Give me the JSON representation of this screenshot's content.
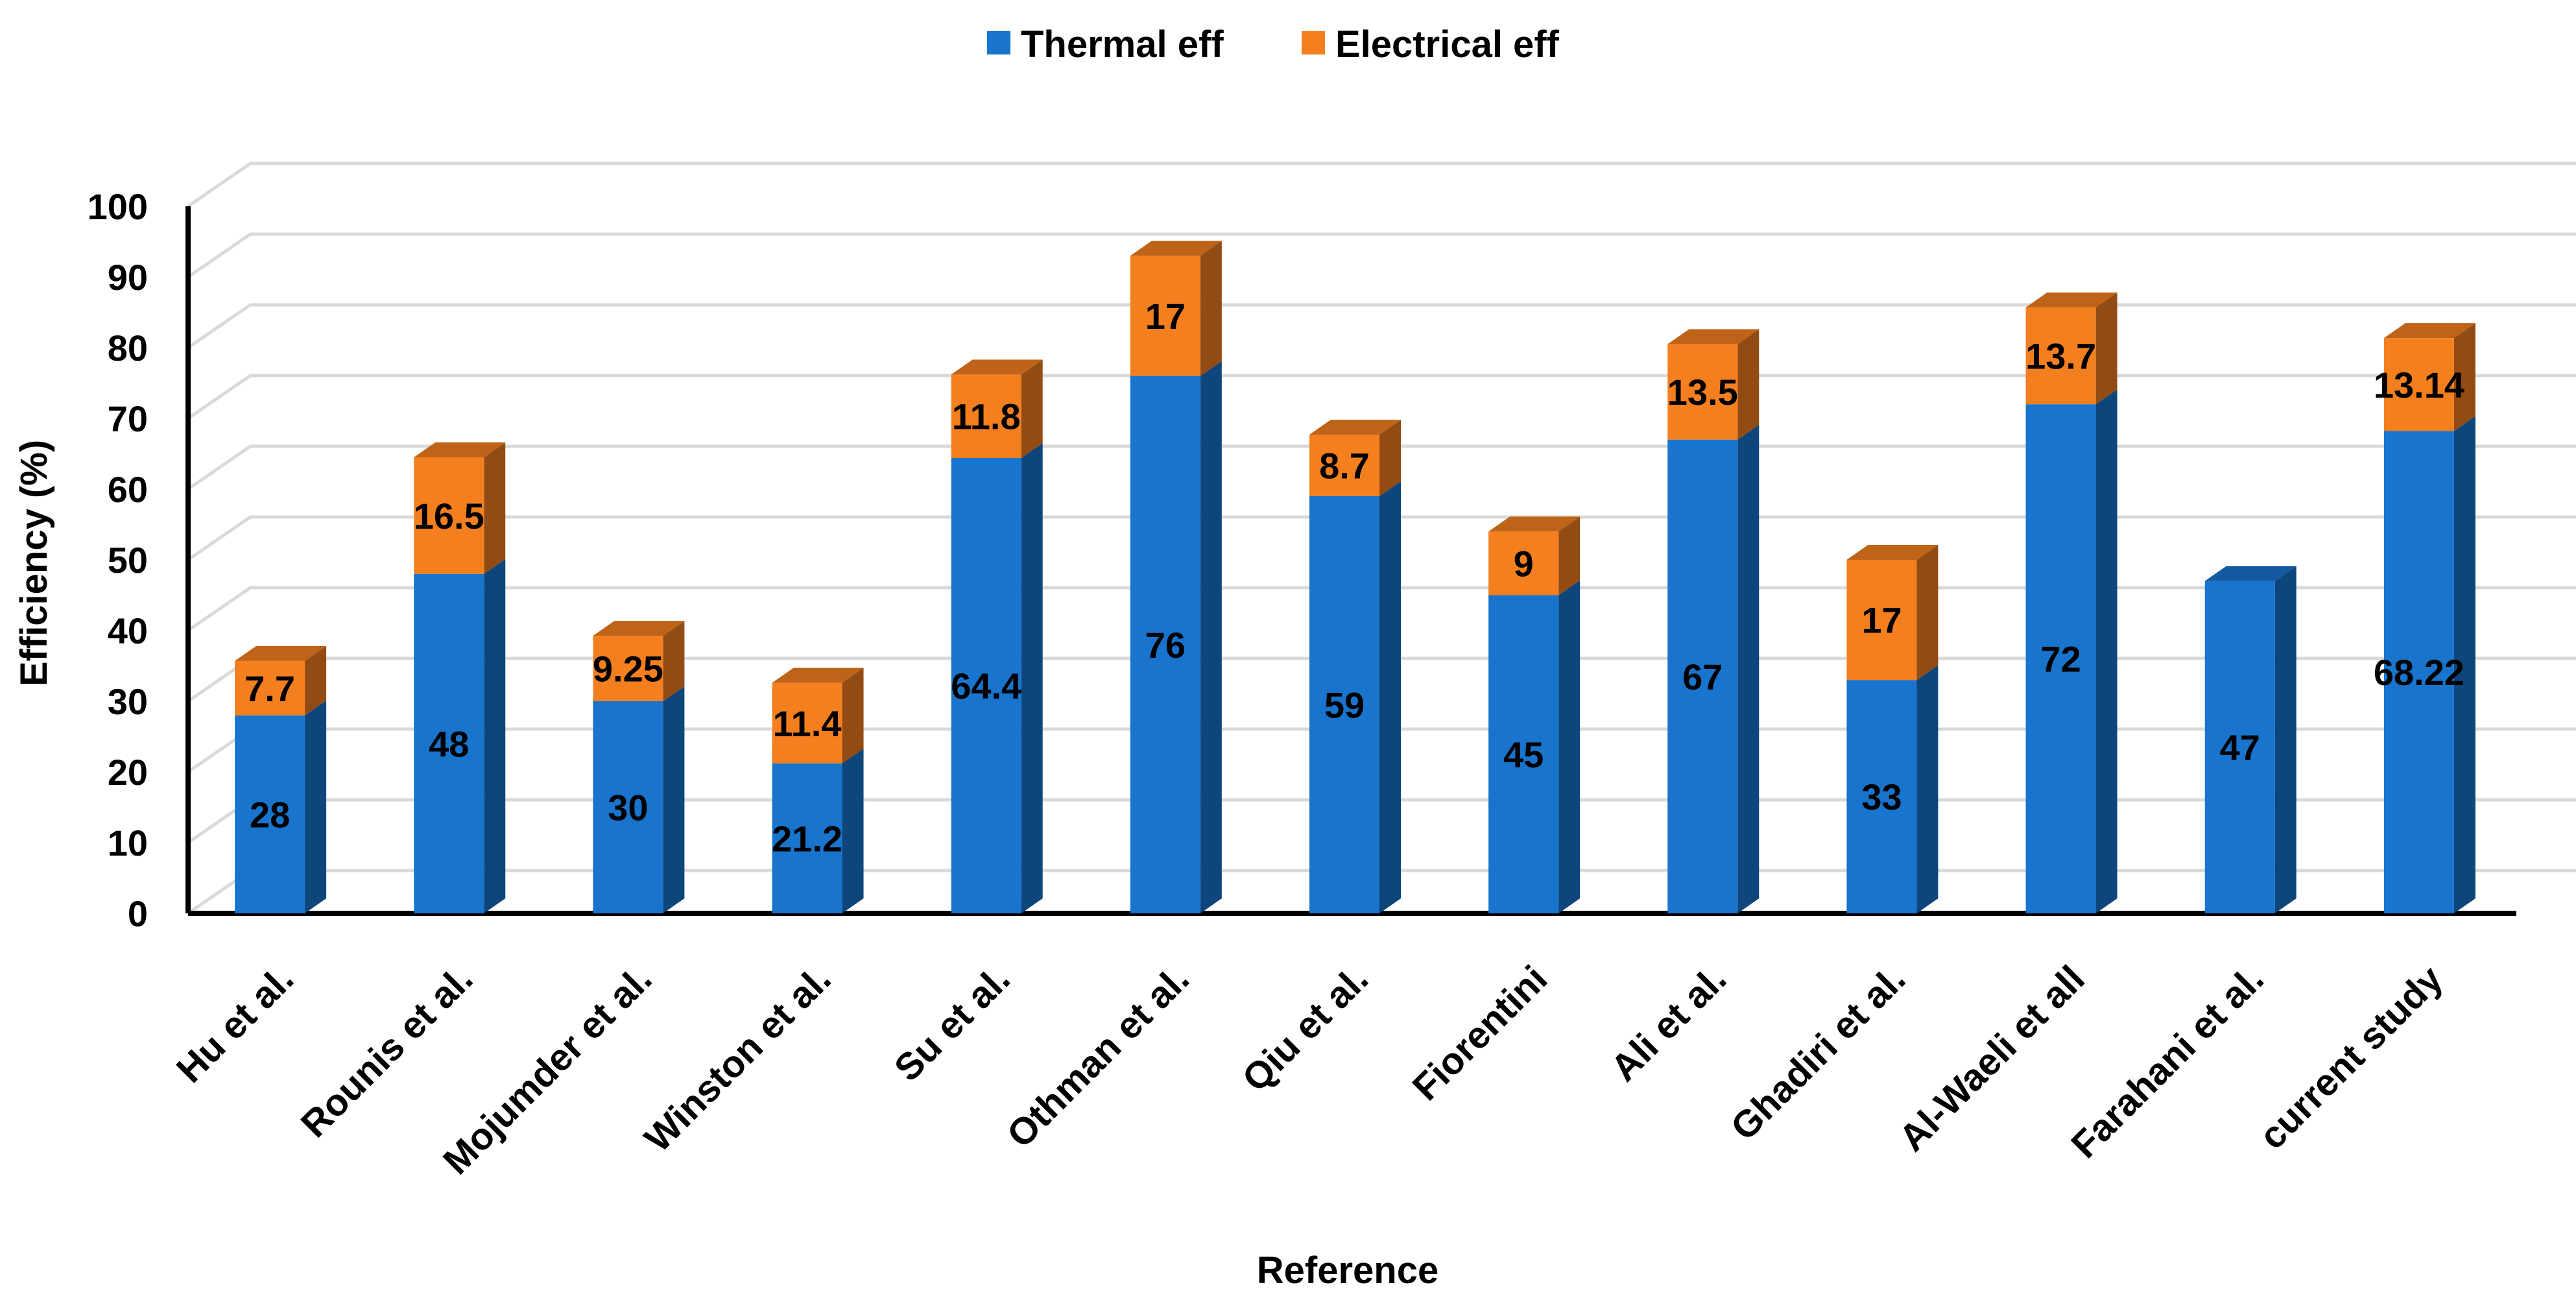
{
  "chart_data": {
    "type": "bar",
    "stacked": true,
    "style": "3d-column",
    "title": "",
    "xlabel": "Reference",
    "ylabel": "Efficiency (%)",
    "ylim": [
      0,
      100
    ],
    "yticks": [
      0,
      10,
      20,
      30,
      40,
      50,
      60,
      70,
      80,
      90,
      100
    ],
    "grid": true,
    "legend_position": "top-center",
    "categories": [
      "Hu et al.",
      "Rounis et al.",
      "Mojumder et al.",
      "Winston et al.",
      "Su et al.",
      "Othman et al.",
      "Qiu et al.",
      "Fiorentini",
      "Ali et al.",
      "Ghadiri et al.",
      "Al-Waeli et all",
      "Farahani et al.",
      "current study"
    ],
    "series": [
      {
        "name": "Thermal eff",
        "color": "#1874CD",
        "values": [
          28,
          48,
          30,
          21.2,
          64.4,
          76,
          59,
          45,
          67,
          33,
          72,
          47,
          68.22
        ],
        "labels": [
          "28",
          "48",
          "30",
          "21.2",
          "64.4",
          "76",
          "59",
          "45",
          "67",
          "33",
          "72",
          "47",
          "68.22"
        ]
      },
      {
        "name": "Electrical eff",
        "color": "#F47F1F",
        "values": [
          7.7,
          16.5,
          9.25,
          11.4,
          11.8,
          17,
          8.7,
          9,
          13.5,
          17,
          13.7,
          0,
          13.14
        ],
        "labels": [
          "7.7",
          "16.5",
          "9.25",
          "11.4",
          "11.8",
          "17",
          "8.7",
          "9",
          "13.5",
          "17",
          "13.7",
          "",
          "13.14"
        ]
      }
    ]
  }
}
